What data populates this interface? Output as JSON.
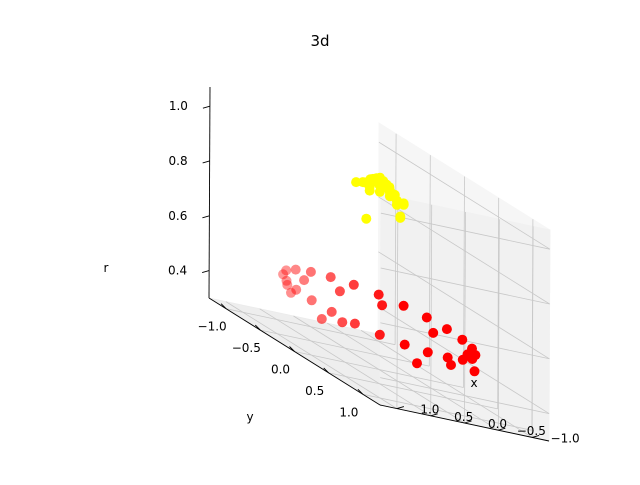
{
  "chart_data": {
    "type": "scatter",
    "projection": "3d",
    "title": "3d",
    "xlabel": "x",
    "ylabel": "y",
    "zlabel": "r",
    "xlim": [
      -1.25,
      1.25
    ],
    "ylim": [
      -1.25,
      1.25
    ],
    "zlim": [
      0.3,
      1.07
    ],
    "xticks": [
      -1.0,
      -0.5,
      0.0,
      0.5,
      1.0
    ],
    "xtick_labels": [
      "−1.0",
      "−0.5",
      "0.0",
      "0.5",
      "1.0"
    ],
    "yticks": [
      -1.0,
      -0.5,
      0.0,
      0.5,
      1.0
    ],
    "ytick_labels": [
      "−1.0",
      "−0.5",
      "0.0",
      "0.5",
      "1.0"
    ],
    "zticks": [
      0.4,
      0.6,
      0.8,
      1.0
    ],
    "ztick_labels": [
      "0.4",
      "0.6",
      "0.8",
      "1.0"
    ],
    "grid": true,
    "series": [
      {
        "color": "#ff0000",
        "points": [
          {
            "x": 1.0,
            "y": 0.0,
            "z": 0.5
          },
          {
            "x": 0.966,
            "y": 0.259,
            "z": 0.5
          },
          {
            "x": 0.866,
            "y": 0.5,
            "z": 0.5
          },
          {
            "x": 0.707,
            "y": 0.707,
            "z": 0.5
          },
          {
            "x": 0.5,
            "y": 0.866,
            "z": 0.5
          },
          {
            "x": 0.259,
            "y": 0.966,
            "z": 0.5
          },
          {
            "x": 0.0,
            "y": 1.0,
            "z": 0.5
          },
          {
            "x": -0.259,
            "y": 0.966,
            "z": 0.5
          },
          {
            "x": -0.5,
            "y": 0.866,
            "z": 0.5
          },
          {
            "x": -0.707,
            "y": 0.707,
            "z": 0.5
          },
          {
            "x": -0.866,
            "y": 0.5,
            "z": 0.5
          },
          {
            "x": -0.966,
            "y": 0.259,
            "z": 0.5
          },
          {
            "x": -1.0,
            "y": 0.0,
            "z": 0.5
          },
          {
            "x": -0.966,
            "y": -0.259,
            "z": 0.5
          },
          {
            "x": -0.866,
            "y": -0.5,
            "z": 0.5
          },
          {
            "x": -0.707,
            "y": -0.707,
            "z": 0.5
          },
          {
            "x": -0.5,
            "y": -0.866,
            "z": 0.5
          },
          {
            "x": -0.259,
            "y": -0.966,
            "z": 0.5
          },
          {
            "x": 0.0,
            "y": -1.0,
            "z": 0.5
          },
          {
            "x": 0.259,
            "y": -0.966,
            "z": 0.5
          },
          {
            "x": 0.5,
            "y": -0.866,
            "z": 0.5
          },
          {
            "x": 0.707,
            "y": -0.707,
            "z": 0.5
          },
          {
            "x": 0.866,
            "y": -0.5,
            "z": 0.5
          },
          {
            "x": 0.966,
            "y": -0.259,
            "z": 0.5
          },
          {
            "x": 0.95,
            "y": 0.1,
            "z": 0.45
          },
          {
            "x": 0.9,
            "y": 0.35,
            "z": 0.48
          },
          {
            "x": 0.3,
            "y": 0.85,
            "z": 0.44
          },
          {
            "x": -0.1,
            "y": 0.95,
            "z": 0.47
          },
          {
            "x": -0.6,
            "y": 0.8,
            "z": 0.45
          },
          {
            "x": -0.85,
            "y": 0.45,
            "z": 0.47
          },
          {
            "x": -0.95,
            "y": -0.15,
            "z": 0.46
          },
          {
            "x": -0.7,
            "y": -0.65,
            "z": 0.47
          },
          {
            "x": -0.35,
            "y": -0.92,
            "z": 0.46
          },
          {
            "x": 0.15,
            "y": -0.95,
            "z": 0.47
          },
          {
            "x": 0.6,
            "y": -0.75,
            "z": 0.46
          },
          {
            "x": 0.9,
            "y": -0.4,
            "z": 0.47
          }
        ]
      },
      {
        "color": "#ffff00",
        "points": [
          {
            "x": 0.0,
            "y": 0.0,
            "z": 1.0
          },
          {
            "x": 0.05,
            "y": 0.0,
            "z": 0.99
          },
          {
            "x": 0.0,
            "y": 0.05,
            "z": 0.99
          },
          {
            "x": -0.05,
            "y": 0.0,
            "z": 0.99
          },
          {
            "x": 0.0,
            "y": -0.05,
            "z": 0.99
          },
          {
            "x": 0.1,
            "y": 0.0,
            "z": 0.98
          },
          {
            "x": -0.1,
            "y": 0.0,
            "z": 0.98
          },
          {
            "x": 0.0,
            "y": 0.1,
            "z": 0.98
          },
          {
            "x": 0.0,
            "y": -0.1,
            "z": 0.98
          },
          {
            "x": 0.07,
            "y": 0.07,
            "z": 0.98
          },
          {
            "x": -0.07,
            "y": 0.07,
            "z": 0.98
          },
          {
            "x": -0.07,
            "y": -0.07,
            "z": 0.98
          },
          {
            "x": 0.07,
            "y": -0.07,
            "z": 0.98
          },
          {
            "x": 0.15,
            "y": 0.0,
            "z": 0.96
          },
          {
            "x": -0.15,
            "y": 0.0,
            "z": 0.96
          },
          {
            "x": 0.0,
            "y": 0.15,
            "z": 0.96
          },
          {
            "x": 0.0,
            "y": -0.15,
            "z": 0.96
          },
          {
            "x": 0.11,
            "y": 0.11,
            "z": 0.96
          },
          {
            "x": -0.11,
            "y": 0.11,
            "z": 0.96
          },
          {
            "x": -0.11,
            "y": -0.11,
            "z": 0.96
          },
          {
            "x": 0.11,
            "y": -0.11,
            "z": 0.96
          },
          {
            "x": 0.2,
            "y": 0.05,
            "z": 0.95
          },
          {
            "x": -0.2,
            "y": -0.05,
            "z": 0.95
          },
          {
            "x": 0.05,
            "y": -0.2,
            "z": 0.95
          },
          {
            "x": -0.05,
            "y": 0.2,
            "z": 0.95
          },
          {
            "x": 0.0,
            "y": 0.25,
            "z": 0.94
          },
          {
            "x": -0.15,
            "y": 0.2,
            "z": 0.94
          },
          {
            "x": -0.2,
            "y": 0.15,
            "z": 0.94
          },
          {
            "x": 0.0,
            "y": 0.3,
            "z": 0.9
          },
          {
            "x": -0.05,
            "y": 0.25,
            "z": 0.9
          },
          {
            "x": 0.2,
            "y": -0.15,
            "z": 0.95
          },
          {
            "x": -0.25,
            "y": -0.1,
            "z": 0.93
          },
          {
            "x": 0.3,
            "y": 0.1,
            "z": 0.85
          }
        ]
      }
    ]
  }
}
